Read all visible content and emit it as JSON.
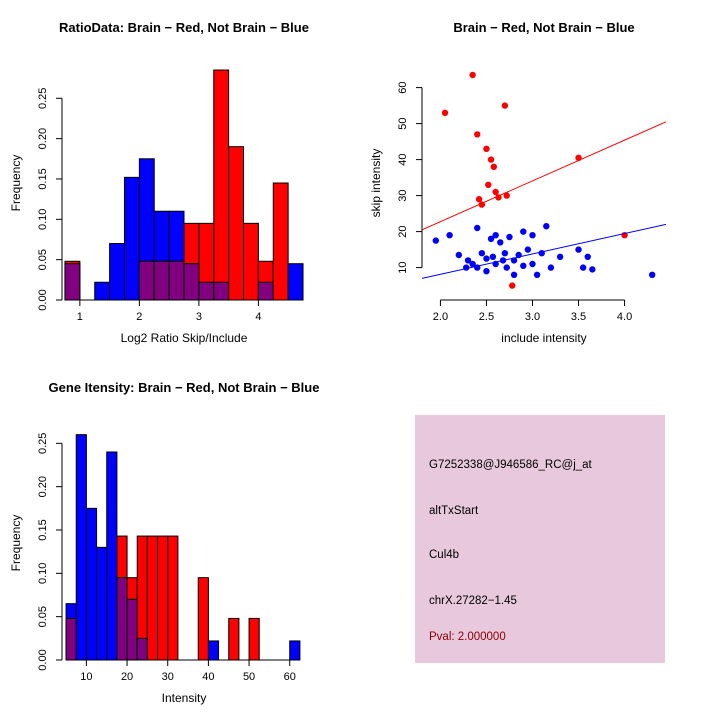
{
  "figure": {
    "background": "#ffffff",
    "brain_color": "#ff0000",
    "not_brain_color": "#0000ff",
    "overlap_color": "#800080"
  },
  "chart_data": [
    {
      "type": "bar",
      "subtype": "histogram-overlaid",
      "title": "RatioData: Brain − Red, Not Brain − Blue",
      "xlabel": "Log2 Ratio Skip/Include",
      "ylabel": "Frequency",
      "xlim": [
        0.7,
        4.8
      ],
      "ylim": [
        0,
        0.29
      ],
      "xticks": {
        "values": [
          1,
          2,
          3,
          4
        ],
        "labels": [
          "1",
          "2",
          "3",
          "4"
        ]
      },
      "yticks": {
        "values": [
          0,
          0.05,
          0.1,
          0.15,
          0.2,
          0.25
        ],
        "labels": [
          "0.00",
          "0.05",
          "0.10",
          "0.15",
          "0.20",
          "0.25"
        ]
      },
      "bin_width": 0.25,
      "bin_centers": [
        0.875,
        1.125,
        1.375,
        1.625,
        1.875,
        2.125,
        2.375,
        2.625,
        2.875,
        3.125,
        3.375,
        3.625,
        3.875,
        4.125,
        4.375,
        4.625
      ],
      "overlap_color": "#800080",
      "series": [
        {
          "name": "Not Brain",
          "color": "#0000ff",
          "values": [
            0.045,
            0,
            0.022,
            0.07,
            0.152,
            0.175,
            0.11,
            0.11,
            0.045,
            0.022,
            0.022,
            0,
            0,
            0.022,
            0,
            0.045
          ]
        },
        {
          "name": "Brain",
          "color": "#ff0000",
          "values": [
            0.048,
            0,
            0,
            0,
            0,
            0.048,
            0.048,
            0.048,
            0.095,
            0.095,
            0.285,
            0.19,
            0.095,
            0.048,
            0.145,
            0
          ]
        }
      ]
    },
    {
      "type": "scatter",
      "title": "Brain − Red, Not Brain − Blue",
      "xlabel": "include intensity",
      "ylabel": "skip intensity",
      "xlim": [
        1.8,
        4.45
      ],
      "ylim": [
        1,
        66
      ],
      "xticks": {
        "values": [
          2.0,
          2.5,
          3.0,
          3.5,
          4.0
        ],
        "labels": [
          "2.0",
          "2.5",
          "3.0",
          "3.5",
          "4.0"
        ]
      },
      "yticks": {
        "values": [
          10,
          20,
          30,
          40,
          50,
          60
        ],
        "labels": [
          "10",
          "20",
          "30",
          "40",
          "50",
          "60"
        ]
      },
      "series": [
        {
          "name": "Brain",
          "color": "#ff0000",
          "points": [
            [
              2.05,
              53
            ],
            [
              2.35,
              63.5
            ],
            [
              2.4,
              47
            ],
            [
              2.42,
              29
            ],
            [
              2.45,
              27.5
            ],
            [
              2.5,
              43
            ],
            [
              2.52,
              33
            ],
            [
              2.55,
              40
            ],
            [
              2.58,
              38
            ],
            [
              2.6,
              31
            ],
            [
              2.63,
              29.5
            ],
            [
              2.7,
              55
            ],
            [
              2.72,
              30
            ],
            [
              2.78,
              5
            ],
            [
              3.5,
              40.5
            ],
            [
              4.0,
              19
            ]
          ]
        },
        {
          "name": "Not Brain",
          "color": "#0000ff",
          "points": [
            [
              1.95,
              17.5
            ],
            [
              2.1,
              19
            ],
            [
              2.2,
              13.5
            ],
            [
              2.28,
              10
            ],
            [
              2.3,
              12
            ],
            [
              2.35,
              11
            ],
            [
              2.4,
              21
            ],
            [
              2.4,
              10
            ],
            [
              2.45,
              14
            ],
            [
              2.5,
              12.5
            ],
            [
              2.5,
              9
            ],
            [
              2.55,
              18
            ],
            [
              2.57,
              13
            ],
            [
              2.6,
              19
            ],
            [
              2.6,
              11
            ],
            [
              2.65,
              17
            ],
            [
              2.68,
              12
            ],
            [
              2.7,
              14
            ],
            [
              2.72,
              10
            ],
            [
              2.75,
              18.5
            ],
            [
              2.8,
              12
            ],
            [
              2.8,
              8
            ],
            [
              2.85,
              13.5
            ],
            [
              2.9,
              20
            ],
            [
              2.9,
              10.5
            ],
            [
              2.95,
              15
            ],
            [
              3.0,
              19
            ],
            [
              3.0,
              11
            ],
            [
              3.05,
              8
            ],
            [
              3.1,
              14
            ],
            [
              3.15,
              21.5
            ],
            [
              3.2,
              10
            ],
            [
              3.3,
              13
            ],
            [
              3.5,
              15
            ],
            [
              3.55,
              10
            ],
            [
              3.6,
              13
            ],
            [
              3.65,
              9.5
            ],
            [
              4.3,
              8
            ]
          ]
        }
      ],
      "lines": [
        {
          "name": "brain-fit",
          "color": "#ff0000",
          "x1": 1.8,
          "y1": 20.5,
          "x2": 4.45,
          "y2": 50.5
        },
        {
          "name": "not-brain-fit",
          "color": "#0000ff",
          "x1": 1.8,
          "y1": 7.0,
          "x2": 4.45,
          "y2": 22.0
        }
      ]
    },
    {
      "type": "bar",
      "subtype": "histogram-overlaid",
      "title": "Gene Itensity: Brain − Red, Not Brain − Blue",
      "xlabel": "Intensity",
      "ylabel": "Frequency",
      "xlim": [
        4,
        64
      ],
      "ylim": [
        0,
        0.27
      ],
      "xticks": {
        "values": [
          10,
          20,
          30,
          40,
          50,
          60
        ],
        "labels": [
          "10",
          "20",
          "30",
          "40",
          "50",
          "60"
        ]
      },
      "yticks": {
        "values": [
          0,
          0.05,
          0.1,
          0.15,
          0.2,
          0.25
        ],
        "labels": [
          "0.00",
          "0.05",
          "0.10",
          "0.15",
          "0.20",
          "0.25"
        ]
      },
      "bin_width": 2.5,
      "bin_centers": [
        6.25,
        8.75,
        11.25,
        13.75,
        16.25,
        18.75,
        21.25,
        23.75,
        26.25,
        28.75,
        31.25,
        33.75,
        36.25,
        38.75,
        41.25,
        43.75,
        46.25,
        48.75,
        51.25,
        53.75,
        56.25,
        58.75,
        61.25
      ],
      "overlap_color": "#800080",
      "series": [
        {
          "name": "Not Brain",
          "color": "#0000ff",
          "values": [
            0.065,
            0.26,
            0.175,
            0.13,
            0.24,
            0.095,
            0.07,
            0.025,
            0,
            0,
            0,
            0,
            0,
            0,
            0.022,
            0,
            0,
            0,
            0,
            0,
            0,
            0,
            0.022
          ]
        },
        {
          "name": "Brain",
          "color": "#ff0000",
          "values": [
            0.048,
            0,
            0,
            0,
            0,
            0.143,
            0.095,
            0.143,
            0.143,
            0.143,
            0.143,
            0,
            0,
            0.095,
            0,
            0,
            0.048,
            0,
            0.048,
            0,
            0,
            0,
            0
          ]
        }
      ]
    }
  ],
  "info_panel": {
    "bg_color": "#e8c8dc",
    "pval_color": "#8b0000",
    "lines": [
      "G7252338@J946586_RC@j_at",
      "altTxStart",
      "Cul4b",
      "chrX.27282−1.45"
    ],
    "pval": "Pval: 2.000000"
  }
}
